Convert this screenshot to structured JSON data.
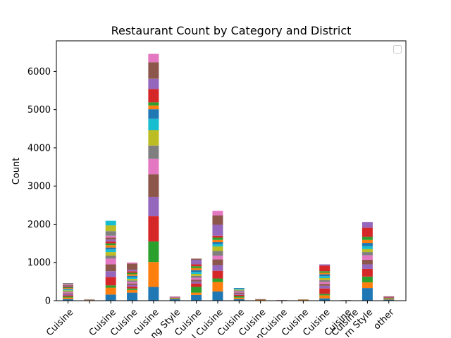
{
  "chart_data": {
    "type": "bar",
    "stacked": true,
    "title": "Restaurant Count by Category and District",
    "xlabel": "",
    "ylabel": "Count",
    "ylim": [
      0,
      6800
    ],
    "yticks": [
      0,
      1000,
      2000,
      3000,
      4000,
      5000,
      6000
    ],
    "legend": "top-right",
    "grid": false,
    "categories": [
      "... Cuisine",
      "... Cuisine",
      "... Cuisine",
      "... Cuisine",
      "... cuisine",
      "...ng Style",
      "... Cuisine",
      "...l Cuisine",
      "... Cuisine",
      "... Cuisine",
      "...nCuisine",
      "... Cuisine",
      "... Cuisine",
      "... Cuisine",
      "...ern Style",
      "other"
    ],
    "category_labels": [
      "Cuisine",
      "",
      "Cuisine",
      "Cuisine",
      "cuisine",
      "ng Style",
      "Cuisine",
      "l Cuisine",
      "Cuisine",
      "Cuisine",
      "nCuisine",
      "Cuisine",
      "Cuisine",
      "Cuisine",
      "rn Style",
      "other"
    ],
    "extra_tick_text": "Cuisine",
    "palette": [
      "#1f77b4",
      "#ff7f0e",
      "#2ca02c",
      "#d62728",
      "#9467bd",
      "#8c564b",
      "#e377c2",
      "#7f7f7f",
      "#bcbd22",
      "#17becf"
    ],
    "stacks": [
      [
        40,
        40,
        30,
        30,
        30,
        25,
        25,
        25,
        25,
        20,
        20,
        20,
        20,
        20,
        20,
        20,
        20,
        30
      ],
      [
        8,
        4,
        4,
        4,
        4,
        4,
        4,
        4,
        4
      ],
      [
        160,
        180,
        60,
        220,
        150,
        180,
        150,
        80,
        90,
        70,
        50,
        60,
        50,
        50,
        50,
        50,
        50,
        120,
        150,
        120
      ],
      [
        210,
        70,
        40,
        50,
        40,
        40,
        40,
        40,
        40,
        40,
        40,
        40,
        40,
        40,
        40,
        160,
        30
      ],
      [
        360,
        650,
        540,
        660,
        500,
        600,
        400,
        350,
        400,
        300,
        250,
        100,
        80,
        350,
        270,
        430,
        220
      ],
      [
        40,
        15,
        15,
        10,
        10,
        10,
        10
      ],
      [
        150,
        60,
        150,
        90,
        50,
        50,
        50,
        50,
        50,
        50,
        50,
        50,
        50,
        50,
        120,
        30
      ],
      [
        240,
        250,
        90,
        200,
        150,
        150,
        100,
        120,
        120,
        60,
        50,
        60,
        60,
        50,
        290,
        240,
        120
      ],
      [
        40,
        40,
        40,
        30,
        30,
        30,
        30,
        30,
        20,
        20,
        20
      ],
      [
        10,
        10,
        8,
        8,
        6
      ],
      [
        6,
        4,
        3,
        3,
        3
      ],
      [
        10,
        8,
        8,
        6
      ],
      [
        60,
        80,
        40,
        140,
        70,
        50,
        50,
        50,
        50,
        50,
        50,
        40,
        40,
        150,
        30
      ],
      [
        5,
        4,
        3,
        2,
        2
      ],
      [
        330,
        150,
        150,
        200,
        120,
        120,
        120,
        80,
        80,
        80,
        80,
        80,
        80,
        240,
        150
      ],
      [
        30,
        20,
        20,
        15,
        15,
        15
      ]
    ]
  }
}
